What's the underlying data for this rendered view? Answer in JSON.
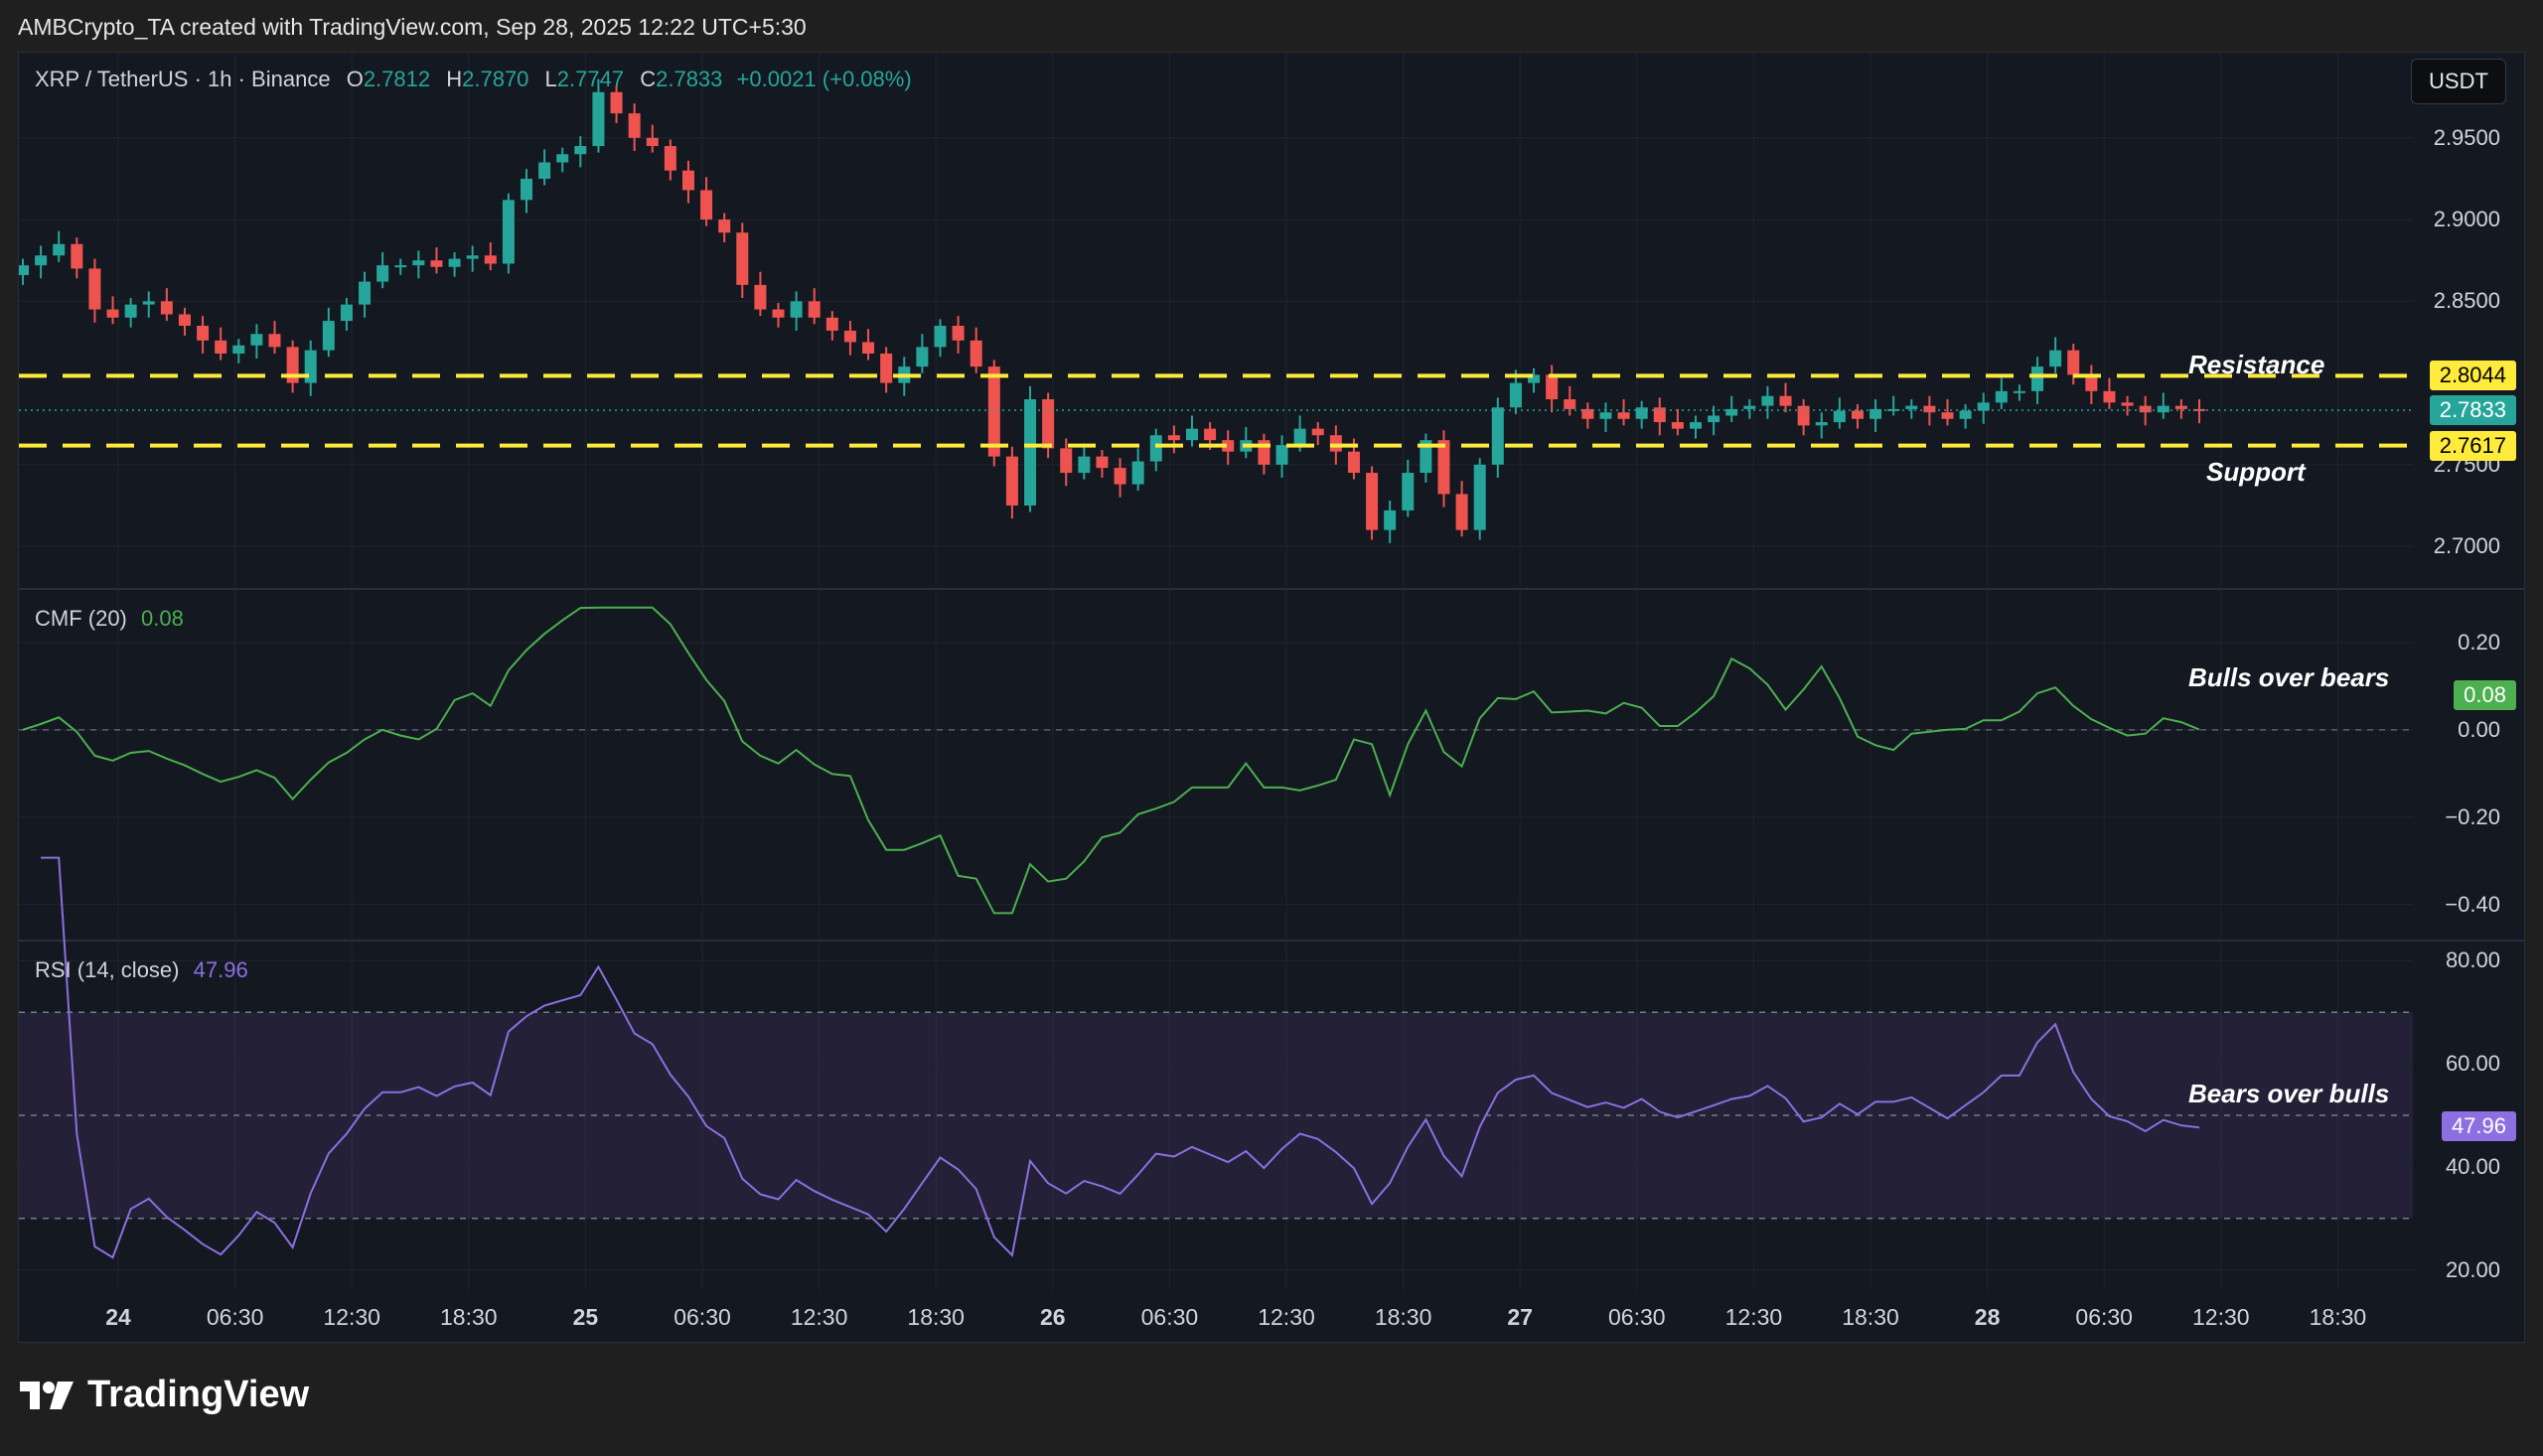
{
  "caption": "AMBCrypto_TA created with TradingView.com, Sep 28, 2025 12:22 UTC+5:30",
  "brand": "TradingView",
  "currency_button": "USDT",
  "colors": {
    "up": "#26a69a",
    "down": "#ef5350",
    "level": "#ffeb3b",
    "cmf": "#4caf50",
    "rsi": "#8c6fe0"
  },
  "legend": {
    "symbol": "XRP / TetherUS · 1h · Binance",
    "o_label": "O",
    "o": "2.7812",
    "h_label": "H",
    "h": "2.7870",
    "l_label": "L",
    "l": "2.7747",
    "c_label": "C",
    "c": "2.7833",
    "change": "+0.0021 (+0.08%)",
    "cmf_label": "CMF (20)",
    "cmf_value": "0.08",
    "rsi_label": "RSI (14, close)",
    "rsi_value": "47.96"
  },
  "annotations": {
    "resistance": "Resistance",
    "support": "Support",
    "cmf_note": "Bulls over bears",
    "rsi_note": "Bears  over bulls"
  },
  "badges": {
    "resistance": "2.8044",
    "last": "2.7833",
    "support": "2.7617",
    "cmf": "0.08",
    "rsi": "47.96"
  },
  "chart_data": [
    {
      "type": "candlestick",
      "series_label": "XRP / TetherUS · 1h · Binance",
      "x_ticks": [
        "24",
        "06:30",
        "12:30",
        "18:30",
        "25",
        "06:30",
        "12:30",
        "18:30",
        "26",
        "06:30",
        "12:30",
        "18:30",
        "27",
        "06:30",
        "12:30",
        "18:30",
        "28",
        "06:30",
        "12:30",
        "18:30"
      ],
      "y_ticks": [
        "2.9500",
        "2.9000",
        "2.8500",
        "2.7500",
        "2.7000"
      ],
      "ylim": [
        2.68,
        2.99
      ],
      "levels": {
        "resistance": 2.8044,
        "support": 2.7617,
        "last": 2.7833
      },
      "closes": [
        2.872,
        2.878,
        2.885,
        2.87,
        2.845,
        2.84,
        2.848,
        2.85,
        2.842,
        2.835,
        2.826,
        2.818,
        2.823,
        2.83,
        2.822,
        2.8,
        2.82,
        2.838,
        2.848,
        2.862,
        2.872,
        2.872,
        2.875,
        2.871,
        2.876,
        2.878,
        2.873,
        2.912,
        2.925,
        2.935,
        2.94,
        2.945,
        2.978,
        2.965,
        2.95,
        2.945,
        2.93,
        2.918,
        2.9,
        2.892,
        2.86,
        2.845,
        2.84,
        2.85,
        2.84,
        2.832,
        2.825,
        2.818,
        2.8,
        2.81,
        2.822,
        2.835,
        2.826,
        2.81,
        2.755,
        2.725,
        2.79,
        2.76,
        2.745,
        2.755,
        2.748,
        2.738,
        2.752,
        2.768,
        2.765,
        2.772,
        2.765,
        2.758,
        2.765,
        2.75,
        2.762,
        2.772,
        2.768,
        2.758,
        2.745,
        2.71,
        2.722,
        2.745,
        2.765,
        2.732,
        2.71,
        2.75,
        2.785,
        2.8,
        2.805,
        2.79,
        2.784,
        2.778,
        2.782,
        2.778,
        2.785,
        2.776,
        2.772,
        2.776,
        2.78,
        2.784,
        2.786,
        2.792,
        2.786,
        2.774,
        2.776,
        2.783,
        2.778,
        2.784,
        2.784,
        2.786,
        2.782,
        2.778,
        2.783,
        2.788,
        2.795,
        2.795,
        2.81,
        2.82,
        2.805,
        2.795,
        2.788,
        2.786,
        2.782,
        2.786,
        2.784,
        2.7833
      ],
      "cmf": {
        "ylim": [
          -0.46,
          0.3
        ],
        "y_ticks": [
          "0.20",
          "0.00",
          "−0.20",
          "−0.40"
        ],
        "last": 0.08
      },
      "rsi": {
        "ylim": [
          18,
          82
        ],
        "y_ticks": [
          "80.00",
          "60.00",
          "40.00",
          "20.00"
        ],
        "band": [
          30,
          70
        ],
        "mid": 50,
        "last": 47.96
      }
    }
  ]
}
